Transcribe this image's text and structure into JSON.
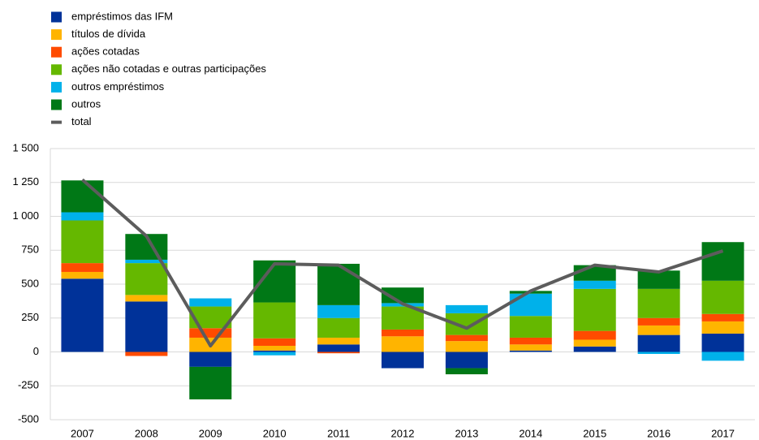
{
  "chart_data": {
    "type": "bar",
    "stacked": true,
    "categories": [
      "2007",
      "2008",
      "2009",
      "2010",
      "2011",
      "2012",
      "2013",
      "2014",
      "2015",
      "2016",
      "2017"
    ],
    "series": [
      {
        "name": "empréstimos das IFM",
        "color": "#003299",
        "values": [
          540,
          372,
          -110,
          10,
          55,
          -120,
          -120,
          10,
          40,
          125,
          135
        ]
      },
      {
        "name": "títulos de dívida",
        "color": "#ffb400",
        "values": [
          50,
          48,
          105,
          35,
          50,
          115,
          80,
          45,
          50,
          70,
          90
        ]
      },
      {
        "name": "ações cotadas",
        "color": "#ff4b00",
        "values": [
          65,
          -30,
          70,
          55,
          -10,
          50,
          45,
          50,
          65,
          55,
          55
        ]
      },
      {
        "name": "ações não cotadas e outras participações",
        "color": "#65b800",
        "values": [
          315,
          235,
          160,
          265,
          145,
          170,
          160,
          160,
          310,
          215,
          245
        ]
      },
      {
        "name": "outros empréstimos",
        "color": "#00b1ea",
        "values": [
          60,
          25,
          60,
          -25,
          95,
          25,
          60,
          165,
          60,
          -15,
          -65
        ]
      },
      {
        "name": "outros",
        "color": "#007816",
        "values": [
          235,
          190,
          -240,
          310,
          305,
          115,
          -45,
          20,
          115,
          135,
          285
        ]
      },
      {
        "name": "total",
        "color": "#5c5c5c",
        "type": "line",
        "values": [
          1270,
          855,
          45,
          650,
          640,
          355,
          175,
          450,
          640,
          590,
          745
        ]
      }
    ],
    "ylim": [
      -500,
      1500
    ],
    "yticks": [
      {
        "value": 1500,
        "label": "1 500"
      },
      {
        "value": 1250,
        "label": "1 250"
      },
      {
        "value": 1000,
        "label": "1 000"
      },
      750,
      500,
      250,
      0,
      -250,
      -500
    ],
    "grid": true,
    "legend": "top-left"
  }
}
